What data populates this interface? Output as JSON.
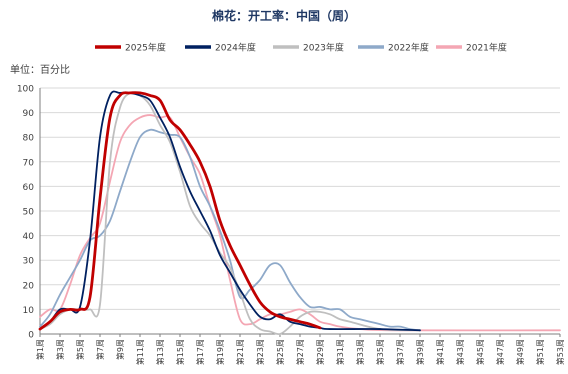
{
  "chart_data": {
    "type": "line",
    "title": "棉花：开工率：中国（周）",
    "unit_label": "单位：百分比",
    "ylim": [
      0,
      100
    ],
    "y_ticks": [
      0,
      10,
      20,
      30,
      40,
      50,
      60,
      70,
      80,
      90,
      100
    ],
    "x_tick_labels": [
      "第1周",
      "第3周",
      "第5周",
      "第7周",
      "第9周",
      "第11周",
      "第13周",
      "第15周",
      "第17周",
      "第19周",
      "第21周",
      "第23周",
      "第25周",
      "第27周",
      "第29周",
      "第31周",
      "第33周",
      "第35周",
      "第37周",
      "第39周",
      "第41周",
      "第43周",
      "第45周",
      "第47周",
      "第49周",
      "第51周",
      "第53周"
    ],
    "legend_position": "top",
    "series": [
      {
        "name": "2025年度",
        "color": "#C00000",
        "data": [
          [
            1,
            2
          ],
          [
            2,
            5
          ],
          [
            3,
            9
          ],
          [
            4,
            10
          ],
          [
            5,
            10
          ],
          [
            6,
            15
          ],
          [
            7,
            55
          ],
          [
            8,
            88
          ],
          [
            9,
            97
          ],
          [
            10,
            98
          ],
          [
            11,
            98
          ],
          [
            12,
            97
          ],
          [
            13,
            95
          ],
          [
            14,
            87
          ],
          [
            15,
            83
          ],
          [
            16,
            77
          ],
          [
            17,
            70
          ],
          [
            18,
            60
          ],
          [
            19,
            46
          ],
          [
            20,
            36
          ],
          [
            21,
            28
          ],
          [
            22,
            20
          ],
          [
            23,
            13
          ],
          [
            24,
            9
          ],
          [
            25,
            7
          ],
          [
            26,
            6
          ],
          [
            27,
            5
          ],
          [
            28,
            4
          ],
          [
            29,
            2.5
          ]
        ]
      },
      {
        "name": "2024年度",
        "color": "#002060",
        "data": [
          [
            1,
            2
          ],
          [
            2,
            5
          ],
          [
            3,
            10
          ],
          [
            4,
            10
          ],
          [
            5,
            11
          ],
          [
            6,
            38
          ],
          [
            7,
            80
          ],
          [
            8,
            97
          ],
          [
            9,
            98
          ],
          [
            10,
            98
          ],
          [
            11,
            97
          ],
          [
            12,
            95
          ],
          [
            13,
            88
          ],
          [
            14,
            80
          ],
          [
            15,
            68
          ],
          [
            16,
            58
          ],
          [
            17,
            50
          ],
          [
            18,
            42
          ],
          [
            19,
            32
          ],
          [
            20,
            25
          ],
          [
            21,
            18
          ],
          [
            22,
            12
          ],
          [
            23,
            7
          ],
          [
            24,
            6
          ],
          [
            25,
            8
          ],
          [
            26,
            5
          ],
          [
            27,
            4
          ],
          [
            28,
            3
          ],
          [
            29,
            2.5
          ],
          [
            30,
            2
          ],
          [
            35,
            2
          ],
          [
            39,
            1.5
          ]
        ]
      },
      {
        "name": "2023年度",
        "color": "#BFBFBF",
        "data": [
          [
            1,
            2
          ],
          [
            2,
            4
          ],
          [
            3,
            8
          ],
          [
            4,
            10
          ],
          [
            5,
            10
          ],
          [
            6,
            10
          ],
          [
            7,
            12
          ],
          [
            8,
            70
          ],
          [
            9,
            92
          ],
          [
            10,
            98
          ],
          [
            11,
            97
          ],
          [
            12,
            93
          ],
          [
            13,
            85
          ],
          [
            14,
            78
          ],
          [
            15,
            66
          ],
          [
            16,
            52
          ],
          [
            17,
            45
          ],
          [
            18,
            40
          ],
          [
            19,
            33
          ],
          [
            20,
            27
          ],
          [
            21,
            17
          ],
          [
            22,
            6
          ],
          [
            23,
            2
          ],
          [
            24,
            1
          ],
          [
            25,
            0
          ],
          [
            26,
            3
          ],
          [
            27,
            7
          ],
          [
            28,
            9
          ],
          [
            29,
            9
          ],
          [
            30,
            8
          ],
          [
            31,
            6
          ],
          [
            32,
            5
          ],
          [
            35,
            2
          ],
          [
            39,
            1.5
          ]
        ]
      },
      {
        "name": "2022年度",
        "color": "#8EA9C9",
        "data": [
          [
            1,
            3
          ],
          [
            2,
            8
          ],
          [
            3,
            16
          ],
          [
            4,
            23
          ],
          [
            5,
            30
          ],
          [
            6,
            38
          ],
          [
            7,
            40
          ],
          [
            8,
            46
          ],
          [
            9,
            58
          ],
          [
            10,
            70
          ],
          [
            11,
            80
          ],
          [
            12,
            83
          ],
          [
            13,
            82
          ],
          [
            14,
            81
          ],
          [
            15,
            80
          ],
          [
            16,
            72
          ],
          [
            17,
            60
          ],
          [
            18,
            52
          ],
          [
            19,
            42
          ],
          [
            20,
            30
          ],
          [
            21,
            15
          ],
          [
            22,
            18
          ],
          [
            23,
            22
          ],
          [
            24,
            28
          ],
          [
            25,
            28
          ],
          [
            26,
            21
          ],
          [
            27,
            15
          ],
          [
            28,
            11
          ],
          [
            29,
            11
          ],
          [
            30,
            10
          ],
          [
            31,
            10
          ],
          [
            32,
            7
          ],
          [
            33,
            6
          ],
          [
            34,
            5
          ],
          [
            35,
            4
          ],
          [
            36,
            3
          ],
          [
            37,
            3
          ],
          [
            38,
            2
          ],
          [
            39,
            1.5
          ]
        ]
      },
      {
        "name": "2021年度",
        "color": "#F4A6B3",
        "data": [
          [
            1,
            7
          ],
          [
            2,
            10
          ],
          [
            3,
            10
          ],
          [
            4,
            20
          ],
          [
            5,
            32
          ],
          [
            6,
            39
          ],
          [
            7,
            45
          ],
          [
            8,
            62
          ],
          [
            9,
            78
          ],
          [
            10,
            85
          ],
          [
            11,
            88
          ],
          [
            12,
            89
          ],
          [
            13,
            88
          ],
          [
            14,
            88
          ],
          [
            15,
            80
          ],
          [
            16,
            72
          ],
          [
            17,
            65
          ],
          [
            18,
            52
          ],
          [
            19,
            40
          ],
          [
            20,
            22
          ],
          [
            21,
            6
          ],
          [
            22,
            4
          ],
          [
            23,
            6
          ],
          [
            24,
            8
          ],
          [
            25,
            8
          ],
          [
            26,
            9
          ],
          [
            27,
            10
          ],
          [
            28,
            8
          ],
          [
            29,
            5
          ],
          [
            30,
            4
          ],
          [
            31,
            3
          ],
          [
            33,
            2
          ],
          [
            37,
            1.5
          ],
          [
            53,
            1.5
          ]
        ]
      }
    ]
  }
}
